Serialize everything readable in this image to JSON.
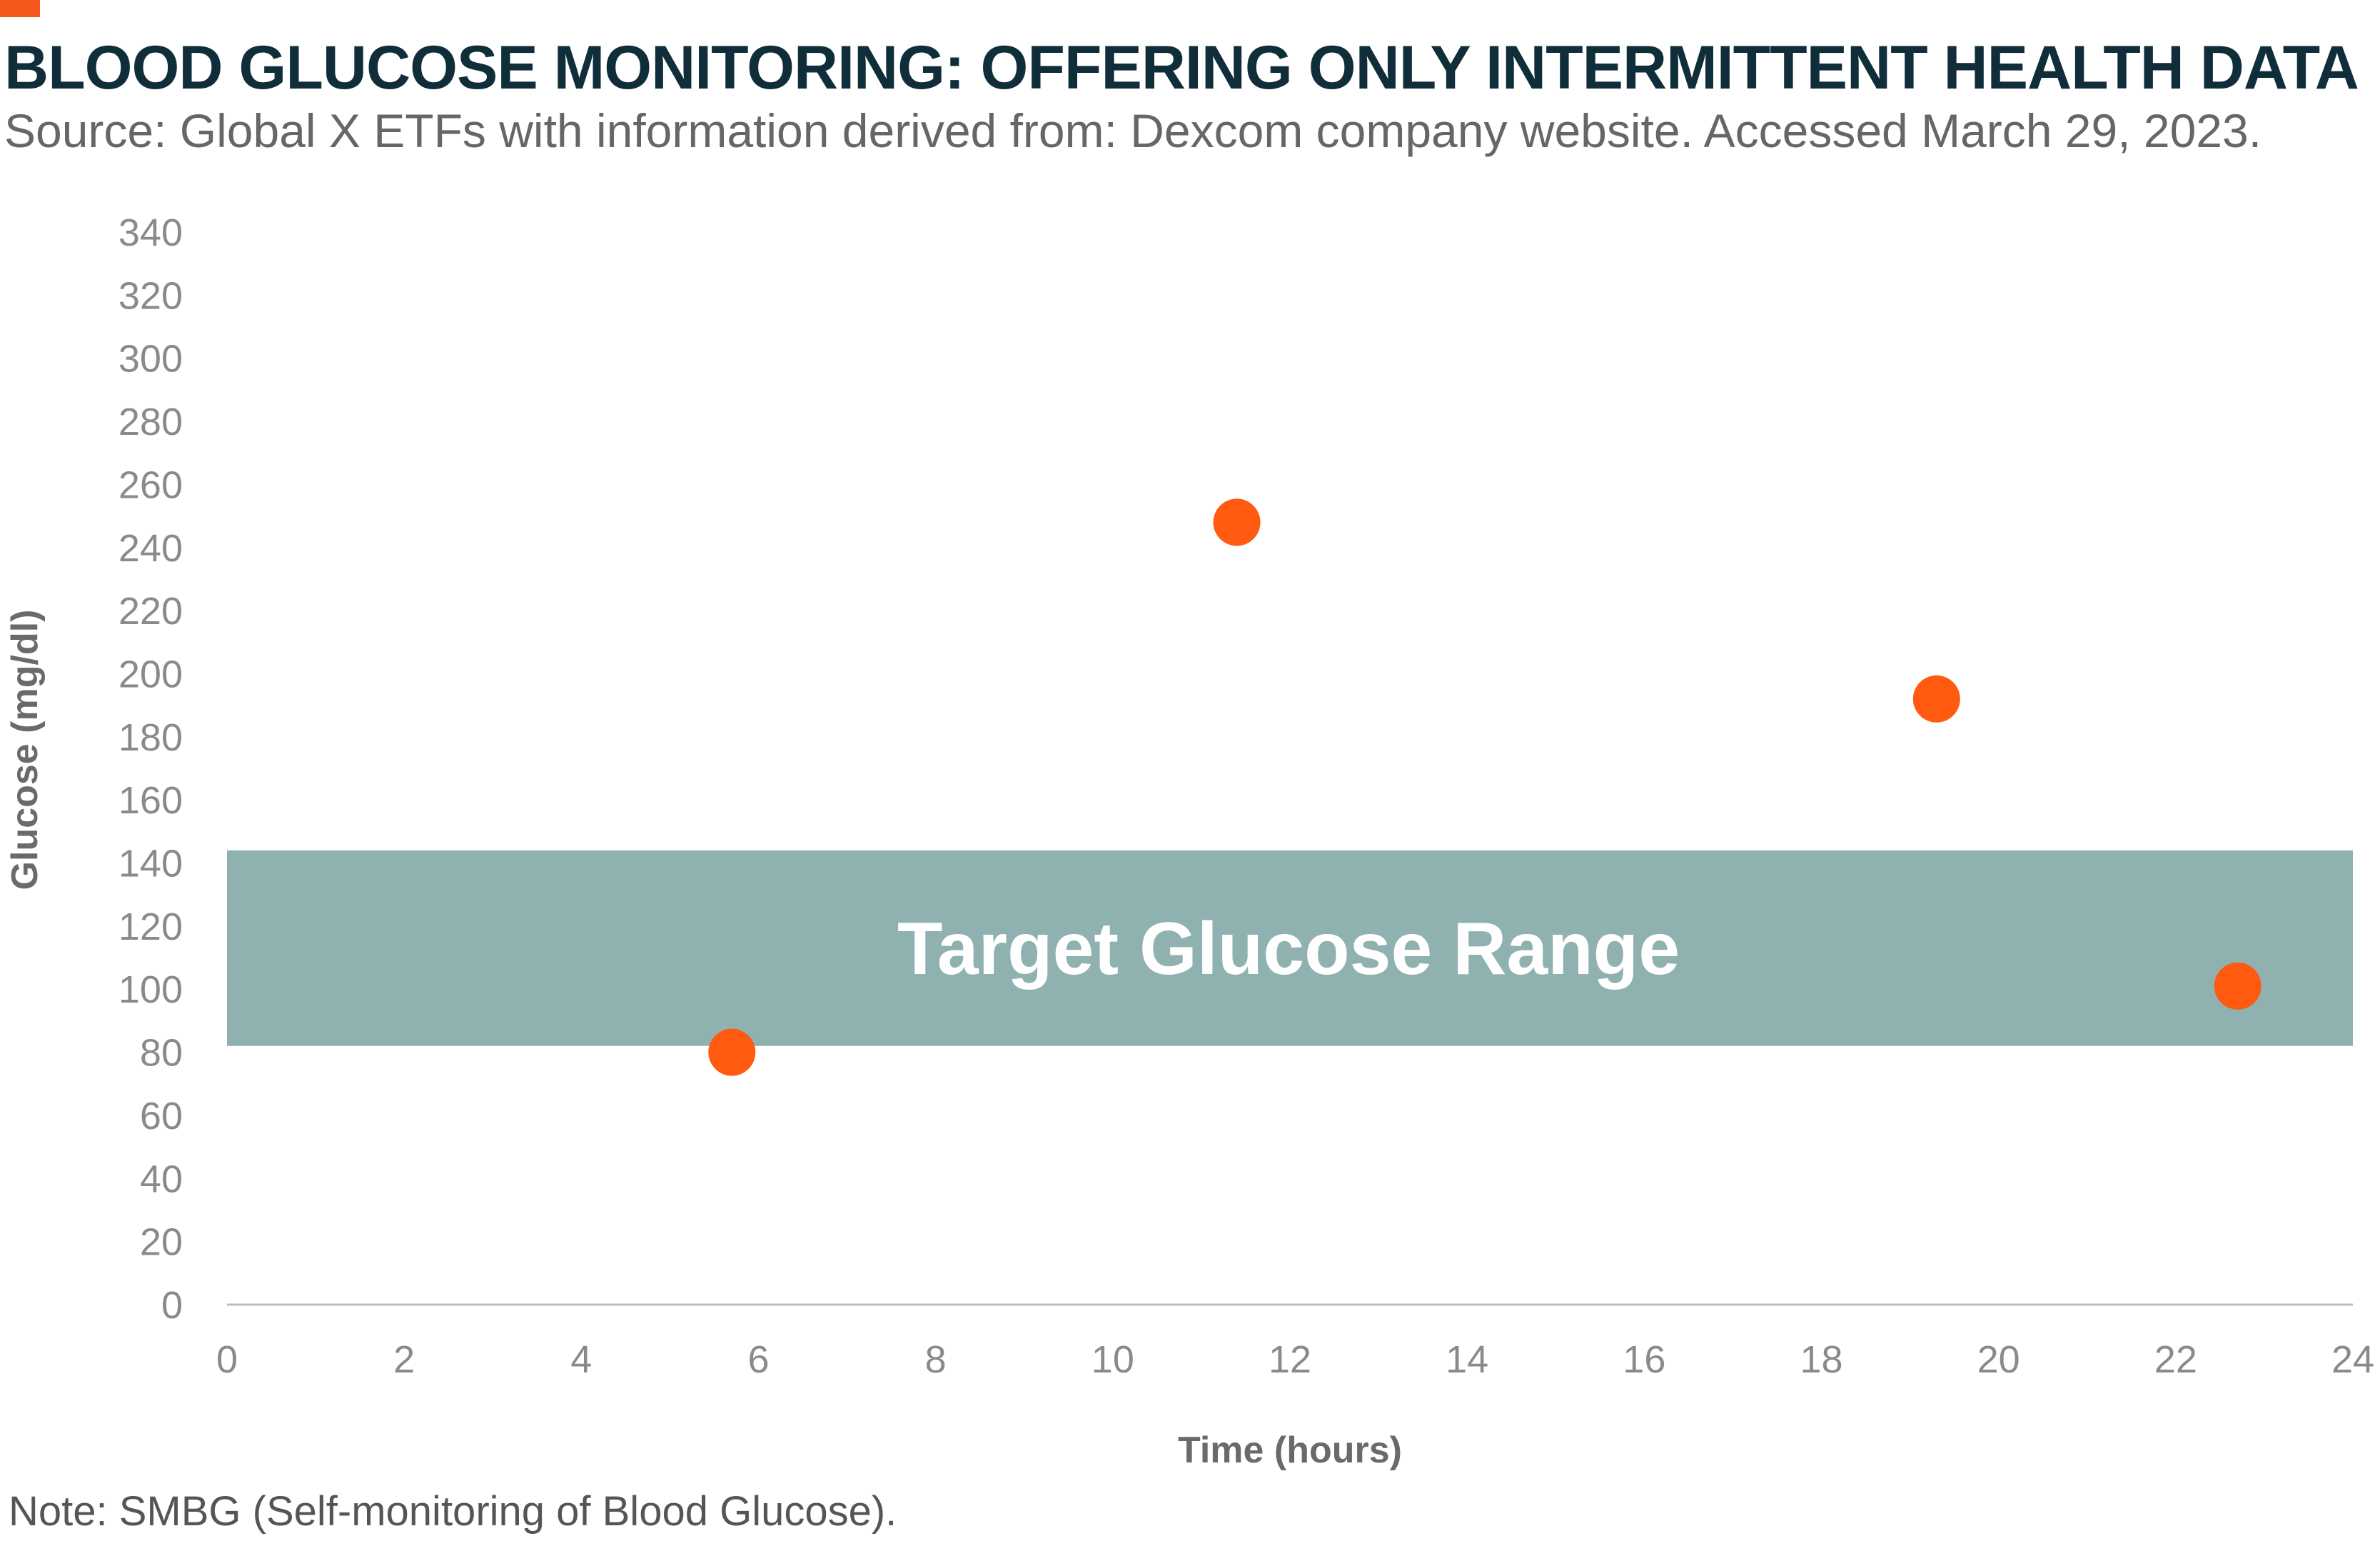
{
  "header": {
    "title": "BLOOD GLUCOSE MONITORING: OFFERING ONLY INTERMITTENT HEALTH DATA",
    "subtitle": "Source: Global X ETFs with information derived from: Dexcom company website. Accessed March 29, 2023."
  },
  "footer": {
    "note": "Note: SMBG (Self-monitoring of Blood Glucose)."
  },
  "colors": {
    "accent": "#F4581B",
    "title": "#0F2E3A",
    "band": "#8FB2B1",
    "point": "#FF5A0F"
  },
  "chart_data": {
    "type": "scatter",
    "xlabel": "Time (hours)",
    "ylabel": "Glucose (mg/dl)",
    "xlim": [
      0,
      24
    ],
    "ylim": [
      0,
      340
    ],
    "xticks": [
      0,
      2,
      4,
      6,
      8,
      10,
      12,
      14,
      16,
      18,
      20,
      22,
      24
    ],
    "yticks": [
      0,
      20,
      40,
      60,
      80,
      100,
      120,
      140,
      160,
      180,
      200,
      220,
      240,
      260,
      280,
      300,
      320,
      340
    ],
    "grid": false,
    "band": {
      "label": "Target Glucose Range",
      "y_min": 82,
      "y_max": 144
    },
    "points": [
      {
        "x": 5.7,
        "y": 80
      },
      {
        "x": 11.4,
        "y": 248
      },
      {
        "x": 19.3,
        "y": 192
      },
      {
        "x": 22.7,
        "y": 101
      }
    ]
  }
}
